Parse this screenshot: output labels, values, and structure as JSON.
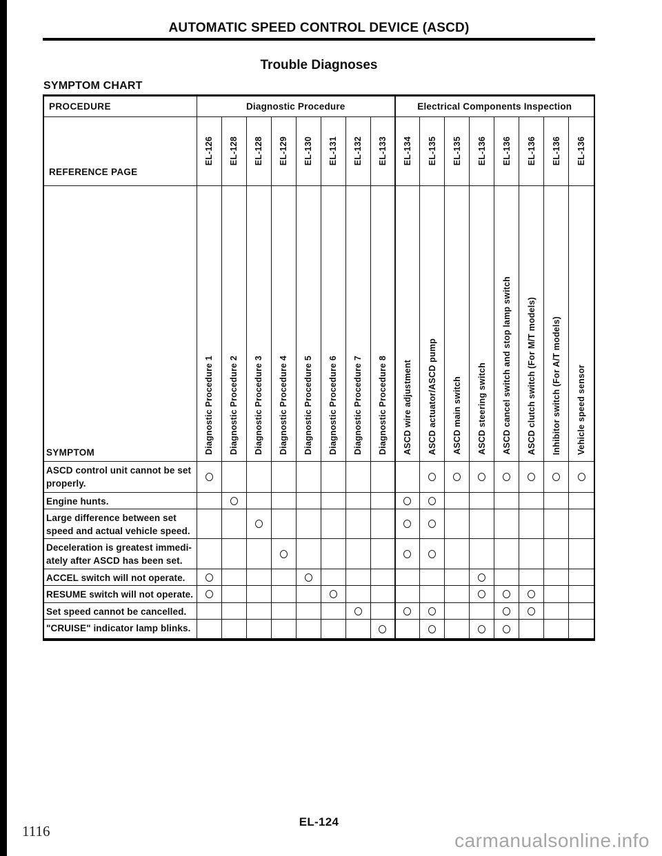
{
  "page": {
    "title": "AUTOMATIC SPEED CONTROL DEVICE (ASCD)",
    "subtitle": "Trouble Diagnoses",
    "section_heading": "SYMPTOM CHART",
    "footer_code": "EL-124",
    "print_page_number": "1116",
    "watermark": "carmanualsonline.info"
  },
  "table": {
    "procedure_label": "PROCEDURE",
    "reference_page_label": "REFERENCE PAGE",
    "symptom_label": "SYMPTOM",
    "mark_symbol": "O",
    "group_headers": [
      {
        "label": "Diagnostic Procedure",
        "span": 8
      },
      {
        "label": "Electrical Components Inspection",
        "span": 8
      }
    ],
    "columns": [
      {
        "name": "Diagnostic Procedure 1",
        "ref": "EL-126"
      },
      {
        "name": "Diagnostic Procedure 2",
        "ref": "EL-128"
      },
      {
        "name": "Diagnostic Procedure 3",
        "ref": "EL-128"
      },
      {
        "name": "Diagnostic Procedure 4",
        "ref": "EL-129"
      },
      {
        "name": "Diagnostic Procedure 5",
        "ref": "EL-130"
      },
      {
        "name": "Diagnostic Procedure 6",
        "ref": "EL-131"
      },
      {
        "name": "Diagnostic Procedure 7",
        "ref": "EL-132"
      },
      {
        "name": "Diagnostic Procedure 8",
        "ref": "EL-133"
      },
      {
        "name": "ASCD wire adjustment",
        "ref": "EL-134"
      },
      {
        "name": "ASCD actuator/ASCD pump",
        "ref": "EL-135"
      },
      {
        "name": "ASCD main switch",
        "ref": "EL-135"
      },
      {
        "name": "ASCD steering switch",
        "ref": "EL-136"
      },
      {
        "name": "ASCD cancel switch and stop lamp switch",
        "ref": "EL-136"
      },
      {
        "name": "ASCD clutch switch (For M/T models)",
        "ref": "EL-136"
      },
      {
        "name": "Inhibitor switch (For A/T models)",
        "ref": "EL-136"
      },
      {
        "name": "Vehicle speed sensor",
        "ref": "EL-136"
      }
    ],
    "rows": [
      {
        "symptom": "ASCD control unit cannot be set\nproperly.",
        "marks": [
          1,
          10,
          11,
          12,
          13,
          14,
          15,
          16
        ]
      },
      {
        "symptom": "Engine hunts.",
        "marks": [
          2,
          9,
          10
        ]
      },
      {
        "symptom": "Large difference between set\nspeed and actual vehicle speed.",
        "marks": [
          3,
          9,
          10
        ]
      },
      {
        "symptom": "Deceleration is greatest immedi-\nately after ASCD has been set.",
        "marks": [
          4,
          9,
          10
        ]
      },
      {
        "symptom": "ACCEL switch will not operate.",
        "marks": [
          1,
          5,
          12
        ]
      },
      {
        "symptom": "RESUME switch will not operate.",
        "marks": [
          1,
          6,
          12,
          13,
          14
        ]
      },
      {
        "symptom": "Set speed cannot be cancelled.",
        "marks": [
          7,
          9,
          10,
          13,
          14
        ]
      },
      {
        "symptom": "\"CRUISE\" indicator lamp blinks.",
        "marks": [
          8,
          10,
          12,
          13
        ]
      }
    ]
  }
}
